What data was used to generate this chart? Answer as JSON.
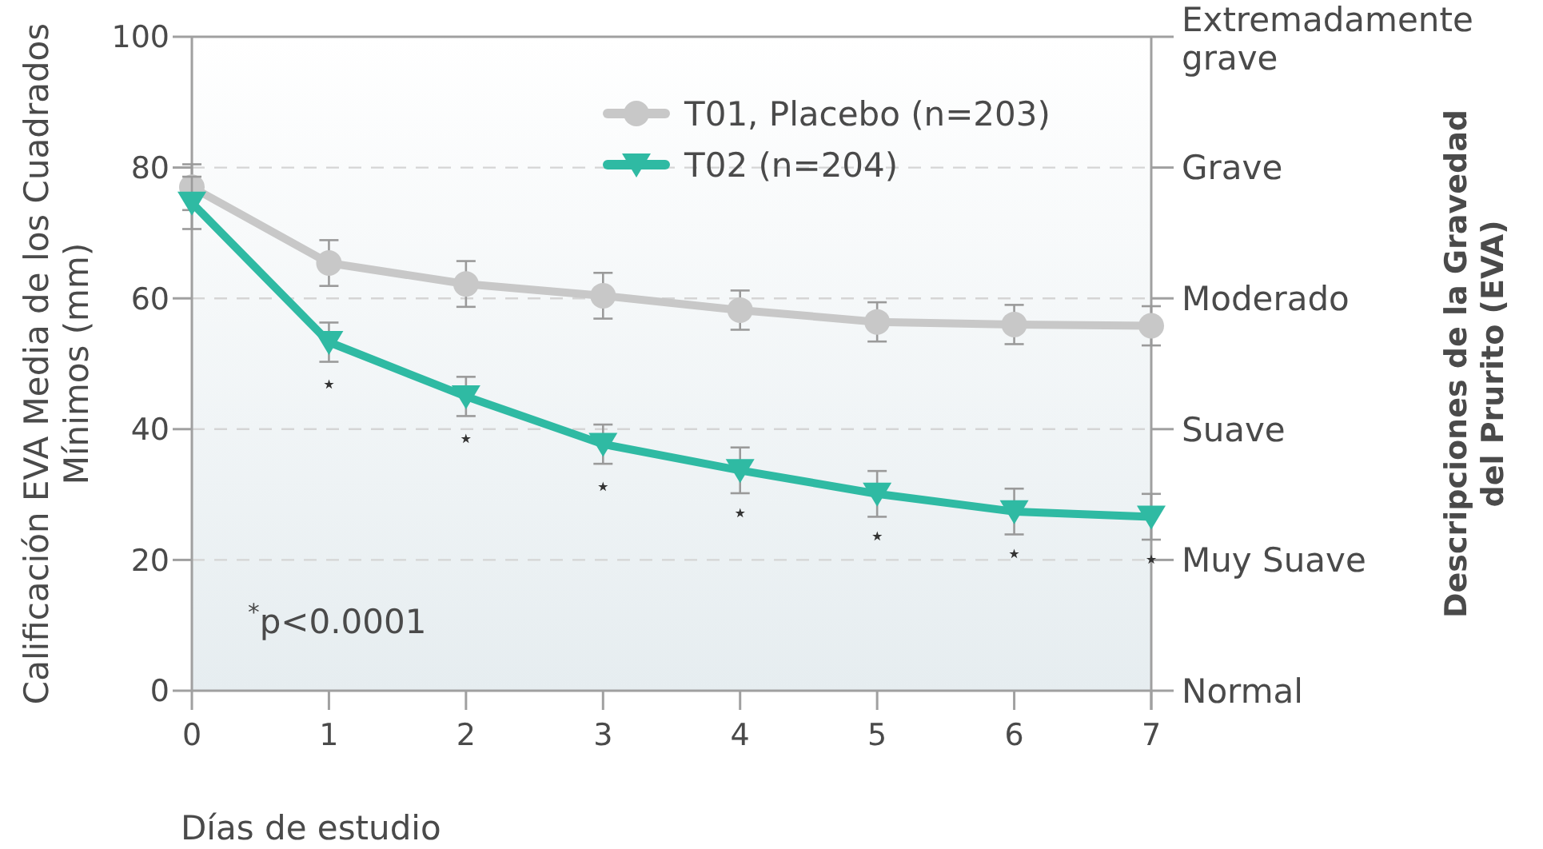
{
  "chart_data": {
    "type": "line",
    "xlabel": "Días de estudio",
    "ylabel": "Calificación EVA Media de los Cuadrados\nMínimos (mm)",
    "x": [
      0,
      1,
      2,
      3,
      4,
      5,
      6,
      7
    ],
    "xlim": [
      0,
      7
    ],
    "xticks": [
      0,
      1,
      2,
      3,
      4,
      5,
      6,
      7
    ],
    "ylim": [
      0,
      100
    ],
    "yticks": [
      0,
      20,
      40,
      60,
      80,
      100
    ],
    "grid": "y",
    "legend": "top right",
    "series": [
      {
        "name": "T01, Placebo (n=203)",
        "color": "#c8c8c8",
        "marker": "circle",
        "values": [
          77,
          65.4,
          62.2,
          60.4,
          58.2,
          56.4,
          56,
          55.8
        ],
        "errors": [
          3.5,
          3.5,
          3.5,
          3.5,
          3,
          3,
          3,
          3
        ]
      },
      {
        "name": "T02 (n=204)",
        "color": "#2fbaa3",
        "marker": "triangle",
        "values": [
          74.6,
          53.3,
          45,
          37.7,
          33.7,
          30.1,
          27.4,
          26.6
        ],
        "errors": [
          4,
          3,
          3,
          3,
          3.5,
          3.5,
          3.5,
          3.5
        ]
      }
    ],
    "annotations": [
      {
        "text": "⋆",
        "x": 1,
        "y": 53.3
      },
      {
        "text": "⋆",
        "x": 2,
        "y": 45
      },
      {
        "text": "⋆",
        "x": 3,
        "y": 37.7
      },
      {
        "text": "⋆",
        "x": 4,
        "y": 33.7
      },
      {
        "text": "⋆",
        "x": 5,
        "y": 30.1
      },
      {
        "text": "⋆",
        "x": 6,
        "y": 27.4
      },
      {
        "text": "⋆",
        "x": 7,
        "y": 26.6
      },
      "Extremadamente\ngrave",
      "Grave",
      "Moderado",
      "Suave",
      "Muy Suave",
      "Normal",
      "$^{*}$p<0.0001",
      "Descripciones de la Gravedad\ndel Prurito (EVA)"
    ]
  }
}
